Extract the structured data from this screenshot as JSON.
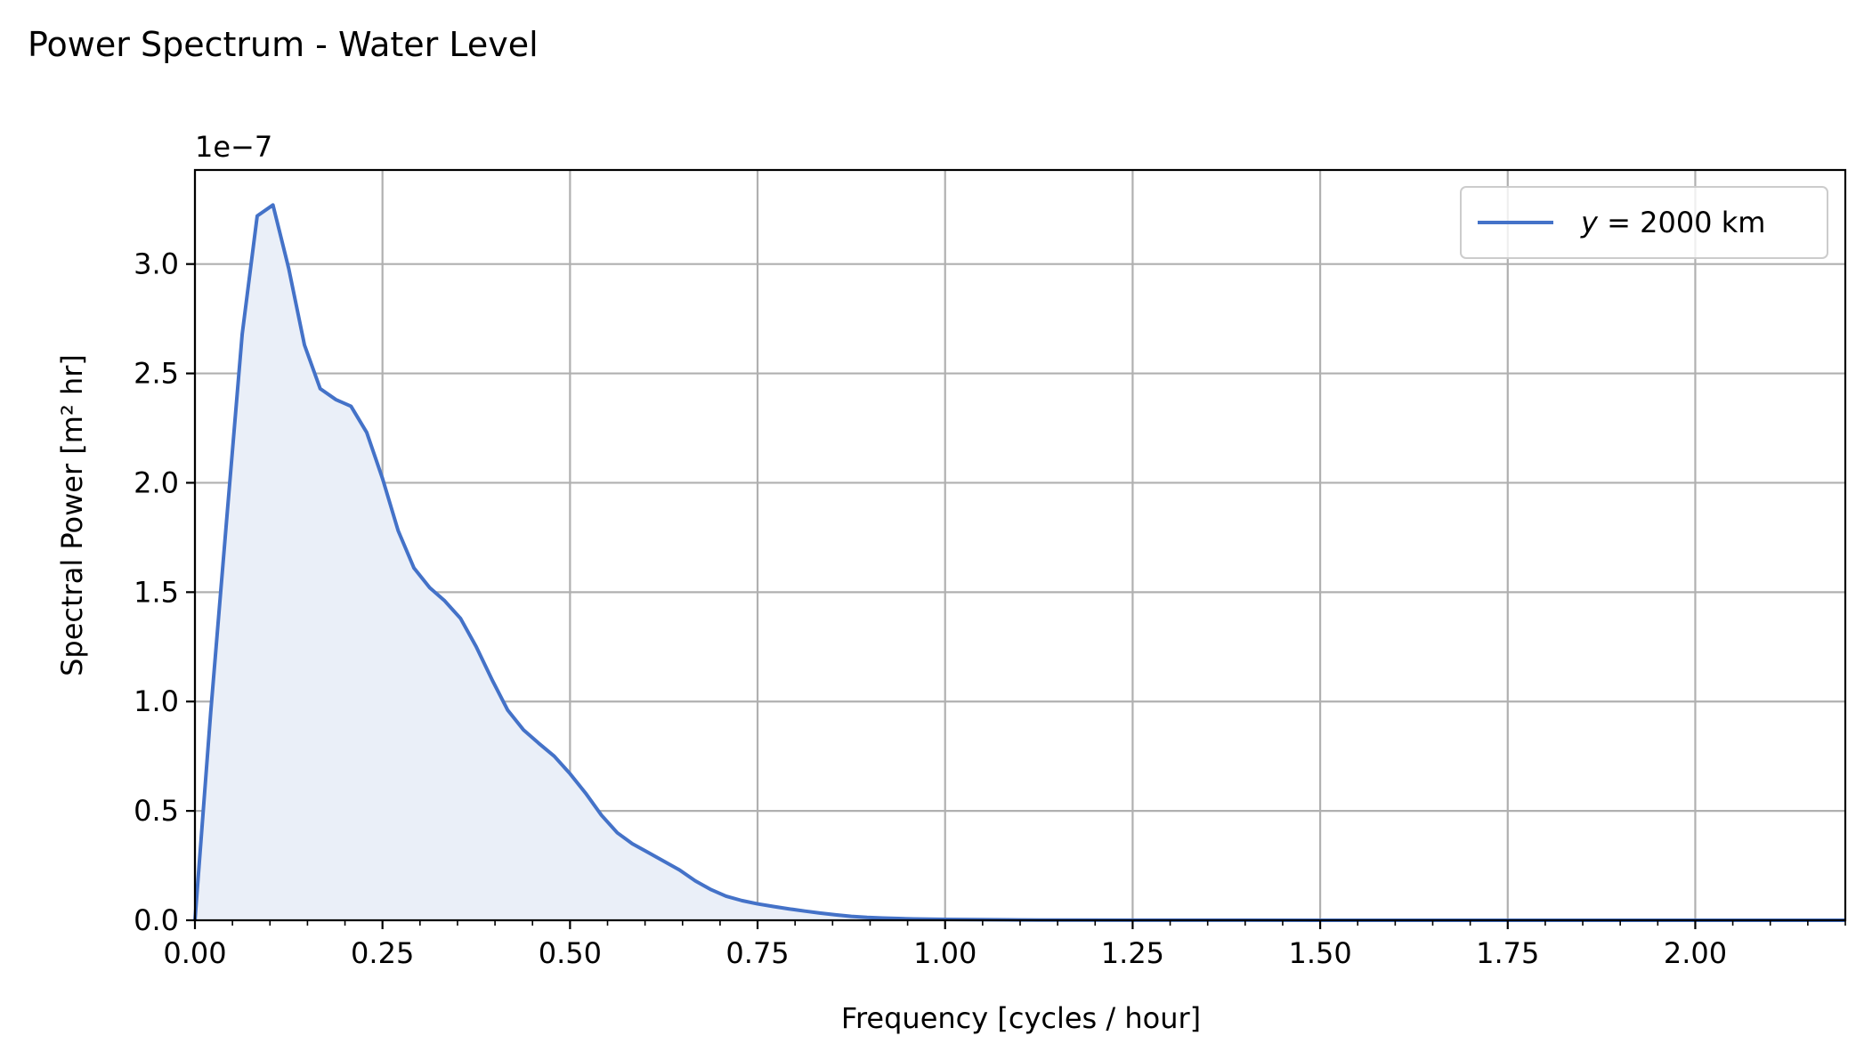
{
  "chart_data": {
    "type": "area",
    "title": "Power Spectrum - Water Level",
    "xlabel": "Frequency [cycles / hour]",
    "ylabel": "Spectral Power [m² hr]",
    "offset_text": "1e−7",
    "xlim": [
      0.0,
      2.2
    ],
    "ylim": [
      0.0,
      3.43
    ],
    "xticks": [
      0.0,
      0.25,
      0.5,
      0.75,
      1.0,
      1.25,
      1.5,
      1.75,
      2.0
    ],
    "xtick_labels": [
      "0.00",
      "0.25",
      "0.50",
      "0.75",
      "1.00",
      "1.25",
      "1.50",
      "1.75",
      "2.00"
    ],
    "yticks": [
      0.0,
      0.5,
      1.0,
      1.5,
      2.0,
      2.5,
      3.0
    ],
    "ytick_labels": [
      "0.0",
      "0.5",
      "1.0",
      "1.5",
      "2.0",
      "2.5",
      "3.0"
    ],
    "grid": true,
    "legend_position": "top-right",
    "colors": {
      "line": "#4472c8",
      "fill": "#eaeff8",
      "grid": "#b0b0b0"
    },
    "series": [
      {
        "name": "y = 2000 km",
        "legend_label_italic": "y",
        "legend_label_rest": " = 2000 km",
        "x": [
          0.0,
          0.021,
          0.042,
          0.063,
          0.083,
          0.104,
          0.125,
          0.146,
          0.167,
          0.188,
          0.208,
          0.229,
          0.25,
          0.271,
          0.292,
          0.313,
          0.333,
          0.354,
          0.375,
          0.396,
          0.417,
          0.438,
          0.458,
          0.479,
          0.5,
          0.521,
          0.542,
          0.563,
          0.583,
          0.604,
          0.625,
          0.646,
          0.667,
          0.688,
          0.708,
          0.729,
          0.75,
          0.771,
          0.792,
          0.813,
          0.833,
          0.854,
          0.875,
          0.896,
          0.917,
          0.938,
          0.958,
          1.0,
          1.042,
          1.083,
          1.125,
          1.25,
          1.5,
          1.75,
          2.0,
          2.2
        ],
        "values": [
          0.0,
          0.95,
          1.82,
          2.68,
          3.22,
          3.27,
          2.98,
          2.63,
          2.43,
          2.38,
          2.35,
          2.23,
          2.02,
          1.78,
          1.61,
          1.52,
          1.46,
          1.38,
          1.25,
          1.1,
          0.96,
          0.87,
          0.81,
          0.75,
          0.67,
          0.58,
          0.48,
          0.4,
          0.35,
          0.31,
          0.27,
          0.23,
          0.18,
          0.14,
          0.11,
          0.09,
          0.075,
          0.063,
          0.052,
          0.042,
          0.033,
          0.025,
          0.018,
          0.013,
          0.01,
          0.008,
          0.006,
          0.004,
          0.003,
          0.002,
          0.001,
          0.0005,
          0.0002,
          0.0001,
          0.0001,
          0.0
        ]
      }
    ]
  }
}
